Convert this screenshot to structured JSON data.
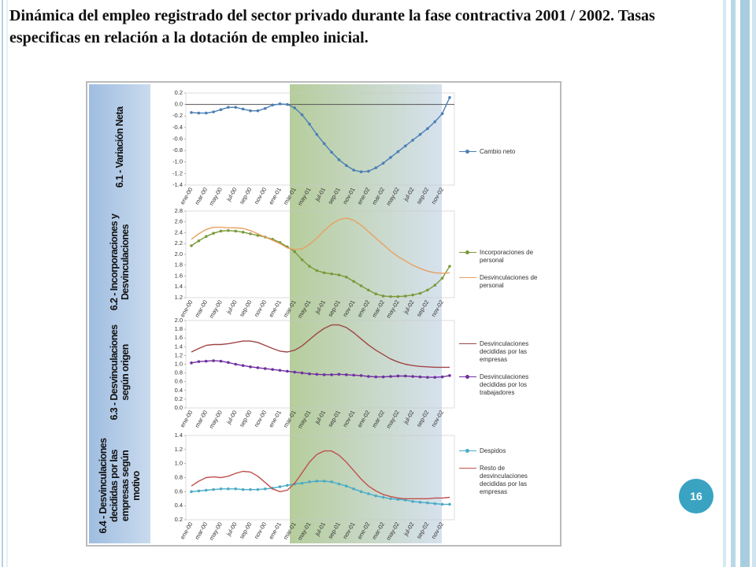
{
  "title": "Dinámica del empleo registrado del sector privado durante la fase contractiva 2001 / 2002. Tasas especificas en relación a la dotación de empleo inicial.",
  "page_number": "16",
  "chart_data": [
    {
      "type": "line",
      "panel_label": "6.1 - Variación Neta",
      "categories": [
        "ene-00",
        null,
        "mar-00",
        null,
        "may-00",
        null,
        "jul-00",
        null,
        "sep-00",
        null,
        "nov-00",
        null,
        "ene-01",
        null,
        "mar-01",
        null,
        "may-01",
        null,
        "jul-01",
        null,
        "sep-01",
        null,
        "nov-01",
        null,
        "ene-02",
        null,
        "mar-02",
        null,
        "may-02",
        null,
        "jul-02",
        null,
        "sep-02",
        null,
        "nov-02",
        null
      ],
      "ylim": [
        -1.4,
        0.2
      ],
      "yticks": [
        -1.4,
        -1.2,
        {
          "value": -1,
          "label": "-1.0"
        },
        -0.8,
        -0.6,
        -0.4,
        -0.2,
        {
          "value": 0,
          "label": "0.0"
        },
        0.2
      ],
      "zero_line": true,
      "series": [
        {
          "name": "Cambio neto",
          "color": "#4a7fb5",
          "markers": true,
          "values": [
            -0.14,
            -0.15,
            -0.15,
            -0.13,
            -0.09,
            -0.05,
            -0.05,
            -0.08,
            -0.11,
            -0.11,
            -0.07,
            -0.01,
            0.01,
            0.0,
            -0.06,
            -0.18,
            -0.34,
            -0.52,
            -0.68,
            -0.83,
            -0.96,
            -1.06,
            -1.14,
            -1.17,
            -1.16,
            -1.1,
            -1.02,
            -0.92,
            -0.82,
            -0.72,
            -0.62,
            -0.52,
            -0.42,
            -0.3,
            -0.16,
            0.12
          ]
        }
      ]
    },
    {
      "type": "line",
      "panel_label": "6.2 - Incorporaciones  y Desvinculaciones",
      "categories": [
        "ene-00",
        null,
        "mar-00",
        null,
        "may-00",
        null,
        "jul-00",
        null,
        "sep-00",
        null,
        "nov-00",
        null,
        "ene-01",
        null,
        "mar-01",
        null,
        "may-01",
        null,
        "jul-01",
        null,
        "sep-01",
        null,
        "nov-01",
        null,
        "ene-02",
        null,
        "mar-02",
        null,
        "may-02",
        null,
        "jul-02",
        null,
        "sep-02",
        null,
        "nov-02",
        null
      ],
      "ylim": [
        1.2,
        2.8
      ],
      "yticks": [
        1.2,
        1.4,
        1.6,
        1.8,
        {
          "value": 2,
          "label": "2.0"
        },
        2.2,
        2.4,
        2.6,
        2.8
      ],
      "series": [
        {
          "name": "Incorporaciones de personal",
          "color": "#7a9a3a",
          "markers": true,
          "values": [
            2.16,
            2.25,
            2.33,
            2.39,
            2.43,
            2.44,
            2.43,
            2.41,
            2.38,
            2.35,
            2.32,
            2.28,
            2.22,
            2.14,
            2.05,
            1.9,
            1.78,
            1.7,
            1.66,
            1.64,
            1.62,
            1.58,
            1.5,
            1.42,
            1.34,
            1.27,
            1.23,
            1.22,
            1.22,
            1.23,
            1.25,
            1.28,
            1.34,
            1.43,
            1.56,
            1.78
          ]
        },
        {
          "name": "Desvinculaciones de personal",
          "color": "#e8a060",
          "markers": false,
          "values": [
            2.28,
            2.38,
            2.46,
            2.5,
            2.5,
            2.49,
            2.49,
            2.48,
            2.44,
            2.38,
            2.32,
            2.26,
            2.2,
            2.12,
            2.09,
            2.1,
            2.18,
            2.3,
            2.44,
            2.56,
            2.64,
            2.67,
            2.63,
            2.54,
            2.42,
            2.3,
            2.18,
            2.06,
            1.96,
            1.88,
            1.8,
            1.74,
            1.69,
            1.66,
            1.65,
            1.66
          ]
        }
      ]
    },
    {
      "type": "line",
      "panel_label": "6.3 - Desvinculaciones según origen",
      "categories": [
        "ene-00",
        null,
        "mar-00",
        null,
        "may-00",
        null,
        "jul-00",
        null,
        "sep-00",
        null,
        "nov-00",
        null,
        "ene-01",
        null,
        "mar-01",
        null,
        "may-01",
        null,
        "jul-01",
        null,
        "sep-01",
        null,
        "nov-01",
        null,
        "ene-02",
        null,
        "mar-02",
        null,
        "may-02",
        null,
        "jul-02",
        null,
        "sep-02",
        null,
        "nov-02",
        null
      ],
      "ylim": [
        0,
        2
      ],
      "yticks": [
        {
          "value": 0,
          "label": "0.0"
        },
        0.2,
        0.4,
        0.6,
        0.8,
        {
          "value": 1,
          "label": "1.0"
        },
        1.2,
        1.4,
        1.6,
        1.8,
        {
          "value": 2,
          "label": "2.0"
        }
      ],
      "series": [
        {
          "name": "Desvinculaciones decididas por las empresas",
          "color": "#a04545",
          "markers": false,
          "values": [
            1.28,
            1.36,
            1.43,
            1.45,
            1.45,
            1.47,
            1.5,
            1.53,
            1.53,
            1.5,
            1.43,
            1.36,
            1.3,
            1.28,
            1.32,
            1.42,
            1.56,
            1.7,
            1.82,
            1.9,
            1.9,
            1.84,
            1.72,
            1.58,
            1.44,
            1.32,
            1.22,
            1.12,
            1.05,
            1.0,
            0.97,
            0.95,
            0.94,
            0.93,
            0.93,
            0.93
          ]
        },
        {
          "name": "Desvinculaciones decididas por los trabajadores",
          "color": "#7030a0",
          "markers": true,
          "values": [
            1.03,
            1.06,
            1.07,
            1.08,
            1.07,
            1.04,
            1.0,
            0.97,
            0.94,
            0.92,
            0.9,
            0.88,
            0.86,
            0.84,
            0.82,
            0.8,
            0.78,
            0.77,
            0.76,
            0.76,
            0.77,
            0.76,
            0.75,
            0.74,
            0.72,
            0.71,
            0.71,
            0.72,
            0.73,
            0.73,
            0.72,
            0.71,
            0.7,
            0.7,
            0.71,
            0.74
          ]
        }
      ]
    },
    {
      "type": "line",
      "panel_label": "6.4 - Desvinculaciones decididas por las empresas según motivo",
      "categories": [
        "ene-00",
        null,
        "mar-00",
        null,
        "may-00",
        null,
        "jul-00",
        null,
        "sep-00",
        null,
        "nov-00",
        null,
        "ene-01",
        null,
        "mar-01",
        null,
        "may-01",
        null,
        "jul-01",
        null,
        "sep-01",
        null,
        "nov-01",
        null,
        "ene-02",
        null,
        "mar-02",
        null,
        "may-02",
        null,
        "jul-02",
        null,
        "sep-02",
        null,
        "nov-02",
        null
      ],
      "ylim": [
        0.2,
        1.4
      ],
      "yticks": [
        0.2,
        0.4,
        0.6,
        0.8,
        {
          "value": 1,
          "label": "1.0"
        },
        1.2,
        1.4
      ],
      "series": [
        {
          "name": "Despidos",
          "color": "#4bacc6",
          "markers": true,
          "values": [
            0.6,
            0.61,
            0.62,
            0.63,
            0.64,
            0.64,
            0.64,
            0.63,
            0.63,
            0.63,
            0.64,
            0.65,
            0.67,
            0.69,
            0.71,
            0.72,
            0.74,
            0.75,
            0.75,
            0.74,
            0.71,
            0.68,
            0.64,
            0.6,
            0.57,
            0.54,
            0.52,
            0.5,
            0.49,
            0.48,
            0.46,
            0.45,
            0.44,
            0.43,
            0.42,
            0.42
          ]
        },
        {
          "name": "Resto de desvinculaciones decididas por las empresas",
          "color": "#c0504d",
          "markers": false,
          "values": [
            0.68,
            0.75,
            0.8,
            0.81,
            0.8,
            0.82,
            0.86,
            0.89,
            0.88,
            0.82,
            0.73,
            0.64,
            0.6,
            0.62,
            0.72,
            0.87,
            1.02,
            1.13,
            1.18,
            1.18,
            1.12,
            1.02,
            0.9,
            0.78,
            0.68,
            0.61,
            0.56,
            0.53,
            0.51,
            0.5,
            0.5,
            0.5,
            0.5,
            0.51,
            0.51,
            0.52
          ]
        }
      ]
    }
  ]
}
